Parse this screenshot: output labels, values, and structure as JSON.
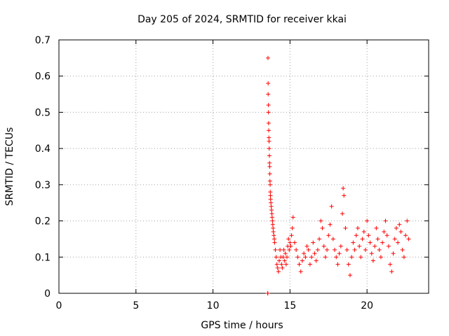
{
  "chart_data": {
    "type": "scatter",
    "title": "Day 205 of 2024, SRMTID for receiver kkai",
    "xlabel": "GPS time / hours",
    "ylabel": "SRMTID / TECUs",
    "xlim": [
      0,
      24
    ],
    "ylim": [
      0,
      0.7
    ],
    "xticks": [
      0,
      5,
      10,
      15,
      20
    ],
    "xtick_labels": [
      "0",
      "5",
      "10",
      "15",
      "20"
    ],
    "yticks": [
      0,
      0.1,
      0.2,
      0.3,
      0.4,
      0.5,
      0.6,
      0.7
    ],
    "ytick_labels": [
      "0",
      "0.1",
      "0.2",
      "0.3",
      "0.4",
      "0.5",
      "0.6",
      "0.7"
    ],
    "grid": true,
    "marker": "+",
    "color": "#ff0000",
    "series": [
      {
        "name": "kkai",
        "x": [
          13.55,
          13.56,
          13.57,
          13.58,
          13.58,
          13.6,
          13.6,
          13.61,
          13.62,
          13.63,
          13.64,
          13.65,
          13.66,
          13.67,
          13.68,
          13.69,
          13.7,
          13.71,
          13.72,
          13.73,
          13.74,
          13.76,
          13.78,
          13.8,
          13.82,
          13.84,
          13.86,
          13.88,
          13.9,
          13.92,
          13.95,
          13.98,
          14.0,
          14.05,
          14.1,
          14.15,
          14.2,
          14.25,
          14.3,
          14.35,
          14.4,
          14.45,
          14.5,
          14.55,
          14.6,
          14.65,
          14.7,
          14.75,
          14.8,
          14.85,
          14.9,
          14.95,
          15.0,
          15.05,
          15.1,
          15.15,
          15.2,
          15.3,
          15.4,
          15.5,
          15.6,
          15.7,
          15.8,
          15.9,
          16.0,
          16.1,
          16.2,
          16.3,
          16.4,
          16.5,
          16.6,
          16.7,
          16.8,
          16.9,
          17.0,
          17.1,
          17.2,
          17.3,
          17.4,
          17.5,
          17.6,
          17.7,
          17.8,
          17.9,
          18.0,
          18.1,
          18.2,
          18.3,
          18.4,
          18.45,
          18.5,
          18.6,
          18.7,
          18.8,
          18.9,
          19.0,
          19.1,
          19.2,
          19.3,
          19.4,
          19.5,
          19.6,
          19.7,
          19.8,
          19.9,
          20.0,
          20.1,
          20.2,
          20.3,
          20.4,
          20.5,
          20.6,
          20.7,
          20.8,
          20.9,
          21.0,
          21.1,
          21.2,
          21.3,
          21.4,
          21.5,
          21.6,
          21.7,
          21.8,
          21.9,
          22.0,
          22.1,
          22.2,
          22.3,
          22.4,
          22.5,
          22.6,
          22.7
        ],
        "y": [
          0.0,
          0.0,
          0.65,
          0.58,
          0.55,
          0.52,
          0.5,
          0.47,
          0.45,
          0.43,
          0.42,
          0.4,
          0.38,
          0.36,
          0.35,
          0.33,
          0.31,
          0.3,
          0.28,
          0.27,
          0.26,
          0.25,
          0.24,
          0.23,
          0.22,
          0.21,
          0.2,
          0.19,
          0.18,
          0.17,
          0.16,
          0.15,
          0.14,
          0.12,
          0.1,
          0.08,
          0.07,
          0.06,
          0.09,
          0.12,
          0.1,
          0.08,
          0.07,
          0.1,
          0.12,
          0.09,
          0.11,
          0.08,
          0.1,
          0.13,
          0.15,
          0.12,
          0.14,
          0.13,
          0.16,
          0.18,
          0.21,
          0.14,
          0.12,
          0.1,
          0.08,
          0.06,
          0.09,
          0.11,
          0.1,
          0.13,
          0.12,
          0.08,
          0.1,
          0.14,
          0.11,
          0.09,
          0.12,
          0.15,
          0.2,
          0.18,
          0.13,
          0.1,
          0.12,
          0.16,
          0.19,
          0.24,
          0.15,
          0.12,
          0.1,
          0.08,
          0.11,
          0.13,
          0.22,
          0.29,
          0.27,
          0.18,
          0.12,
          0.08,
          0.05,
          0.1,
          0.14,
          0.12,
          0.16,
          0.18,
          0.13,
          0.1,
          0.15,
          0.17,
          0.12,
          0.2,
          0.16,
          0.14,
          0.11,
          0.09,
          0.13,
          0.18,
          0.15,
          0.12,
          0.1,
          0.14,
          0.17,
          0.2,
          0.16,
          0.13,
          0.08,
          0.06,
          0.11,
          0.15,
          0.18,
          0.14,
          0.19,
          0.17,
          0.12,
          0.1,
          0.16,
          0.2,
          0.15
        ]
      }
    ]
  }
}
